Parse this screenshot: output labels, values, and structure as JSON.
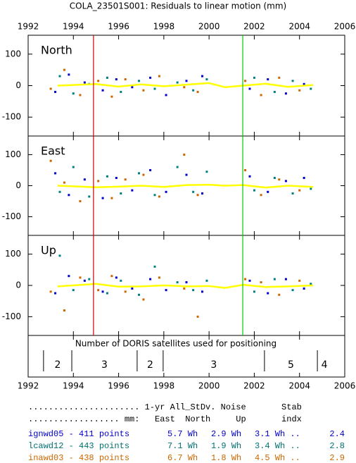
{
  "title": "COLA_23501S001: Residuals to linear motion (mm)",
  "markers": [
    {
      "x": 1994.89,
      "color": "#cc0000"
    },
    {
      "x": 2001.49,
      "color": "#00cc00"
    }
  ],
  "chart_data": [
    {
      "type": "scatter",
      "label": "North",
      "xlim": [
        1992,
        2006
      ],
      "ylim": [
        -160,
        160
      ],
      "xticks": [
        1992,
        1994,
        1996,
        1998,
        2000,
        2002,
        2004,
        2006
      ],
      "yticks": [
        100,
        0,
        -100
      ],
      "series": [
        {
          "name": "ignwd05",
          "color": "#0000cc",
          "x": [
            1993.2,
            1993.8,
            1994.5,
            1995.3,
            1995.9,
            1996.6,
            1997.4,
            1998.1,
            1999.0,
            1999.7,
            2001.8,
            2002.6,
            2003.4,
            2004.2
          ],
          "values": [
            -20,
            35,
            10,
            -15,
            20,
            -5,
            25,
            -30,
            15,
            30,
            -10,
            20,
            -25,
            5
          ]
        },
        {
          "name": "lcawd12",
          "color": "#008080",
          "x": [
            1993.4,
            1994.0,
            1994.7,
            1995.5,
            1996.1,
            1996.9,
            1997.6,
            1998.6,
            1999.3,
            1999.9,
            2002.0,
            2002.9,
            2003.7,
            2004.5
          ],
          "values": [
            30,
            -25,
            5,
            25,
            -20,
            15,
            -10,
            10,
            -15,
            20,
            25,
            -20,
            15,
            -10
          ]
        },
        {
          "name": "inawd03",
          "color": "#cc6600",
          "x": [
            1993.0,
            1993.6,
            1994.3,
            1995.1,
            1995.7,
            1996.3,
            1997.1,
            1997.8,
            1998.9,
            1999.5,
            2001.6,
            2002.3,
            2003.1,
            2004.0
          ],
          "values": [
            -10,
            50,
            -30,
            15,
            -35,
            20,
            -15,
            30,
            -5,
            -20,
            15,
            -30,
            25,
            -15
          ]
        },
        {
          "name": "mean",
          "color": "#ffff00",
          "line": true,
          "x": [
            1993.3,
            1994,
            1995,
            1996,
            1997,
            1998,
            1999,
            2000,
            2000.7,
            2001.5,
            2002.5,
            2003.5,
            2004.6
          ],
          "values": [
            0,
            2,
            5,
            -3,
            4,
            -2,
            3,
            8,
            -5,
            0,
            6,
            -4,
            2
          ]
        }
      ]
    },
    {
      "type": "scatter",
      "label": "East",
      "xlim": [
        1992,
        2006
      ],
      "ylim": [
        -160,
        160
      ],
      "xticks": [
        1992,
        1994,
        1996,
        1998,
        2000,
        2002,
        2004,
        2006
      ],
      "yticks": [
        100,
        0,
        -100
      ],
      "series": [
        {
          "name": "ignwd05",
          "color": "#0000cc",
          "x": [
            1993.2,
            1993.8,
            1994.5,
            1995.3,
            1995.9,
            1996.6,
            1997.4,
            1998.1,
            1999.0,
            1999.7,
            2001.8,
            2002.6,
            2003.4,
            2004.2
          ],
          "values": [
            40,
            -30,
            20,
            -40,
            25,
            -15,
            50,
            -20,
            35,
            -25,
            30,
            -20,
            15,
            25
          ]
        },
        {
          "name": "lcawd12",
          "color": "#008080",
          "x": [
            1993.4,
            1994.0,
            1994.7,
            1995.5,
            1996.1,
            1996.9,
            1997.6,
            1998.6,
            1999.3,
            1999.9,
            2002.0,
            2002.9,
            2003.7,
            2004.5
          ],
          "values": [
            -20,
            60,
            -35,
            30,
            -25,
            40,
            -30,
            60,
            -20,
            45,
            -15,
            25,
            -25,
            -10
          ]
        },
        {
          "name": "inawd03",
          "color": "#cc6600",
          "x": [
            1993.0,
            1993.6,
            1994.3,
            1995.1,
            1995.7,
            1996.3,
            1997.1,
            1997.8,
            1998.9,
            1999.5,
            2001.6,
            2002.3,
            2003.1,
            2004.0
          ],
          "values": [
            80,
            10,
            -50,
            15,
            -40,
            20,
            35,
            -35,
            100,
            -30,
            50,
            -30,
            20,
            -15
          ]
        },
        {
          "name": "mean",
          "color": "#ffff00",
          "line": true,
          "x": [
            1993.3,
            1994,
            1995,
            1996,
            1997,
            1998,
            1999,
            2000,
            2000.7,
            2001.5,
            2002.5,
            2003.5,
            2004.6
          ],
          "values": [
            0,
            -2,
            -5,
            -3,
            0,
            -4,
            2,
            3,
            0,
            2,
            -6,
            0,
            -4
          ]
        }
      ]
    },
    {
      "type": "scatter",
      "label": "Up",
      "xlim": [
        1992,
        2006
      ],
      "ylim": [
        -160,
        160
      ],
      "xticks": [
        1992,
        1994,
        1996,
        1998,
        2000,
        2002,
        2004,
        2006
      ],
      "yticks": [
        100,
        0,
        -100
      ],
      "series": [
        {
          "name": "ignwd05",
          "color": "#0000cc",
          "x": [
            1993.2,
            1993.8,
            1994.5,
            1995.3,
            1995.9,
            1996.6,
            1997.4,
            1998.1,
            1999.0,
            1999.7,
            2001.8,
            2002.6,
            2003.4,
            2004.2
          ],
          "values": [
            -25,
            30,
            15,
            -20,
            25,
            -10,
            20,
            -15,
            10,
            -20,
            15,
            -25,
            20,
            -10
          ]
        },
        {
          "name": "lcawd12",
          "color": "#008080",
          "x": [
            1993.4,
            1994.0,
            1994.7,
            1995.5,
            1996.1,
            1996.9,
            1997.6,
            1998.6,
            1999.3,
            1999.9,
            2002.0,
            2002.9,
            2003.7,
            2004.5
          ],
          "values": [
            95,
            -15,
            20,
            -25,
            15,
            -30,
            60,
            10,
            -15,
            15,
            -20,
            20,
            -15,
            5
          ]
        },
        {
          "name": "inawd03",
          "color": "#cc6600",
          "x": [
            1993.0,
            1993.6,
            1994.3,
            1995.1,
            1995.7,
            1996.3,
            1997.1,
            1997.8,
            1998.9,
            1999.5,
            2001.6,
            2002.3,
            2003.1,
            2004.0
          ],
          "values": [
            -20,
            -80,
            25,
            -15,
            30,
            -20,
            -45,
            25,
            -10,
            -100,
            20,
            10,
            -30,
            15
          ]
        },
        {
          "name": "mean",
          "color": "#ffff00",
          "line": true,
          "x": [
            1993.3,
            1994,
            1995,
            1996,
            1997,
            1998,
            1999,
            2000,
            2000.7,
            2001.5,
            2002.5,
            2003.5,
            2004.6
          ],
          "values": [
            -3,
            0,
            5,
            -4,
            -3,
            0,
            -3,
            -2,
            -8,
            2,
            -5,
            -3,
            0
          ]
        }
      ]
    },
    {
      "type": "timeline",
      "title": "Number of DORIS satellites used for positioning",
      "xlim": [
        1992,
        2006
      ],
      "xticks": [
        1992,
        1994,
        1996,
        1998,
        2000,
        2002,
        2004,
        2006
      ],
      "breaks": [
        1992.68,
        1993.93,
        1996.82,
        1997.97,
        2002.45,
        2004.79
      ],
      "counts": [
        2,
        3,
        2,
        3,
        5,
        4
      ]
    }
  ],
  "table": {
    "header": [
      "...................... 1-yr All_StDv. Noise       Stab",
      ".................. mm:   East  North     Up       indx"
    ],
    "rows": [
      {
        "color": "#0000cc",
        "cells": [
          "ignwd05 - 411 points",
          "5.7 Wh",
          "2.9 Wh",
          "3.1 Wh ..",
          "2.4"
        ]
      },
      {
        "color": "#007070",
        "cells": [
          "lcawd12 - 443 points",
          "7.1 Wh",
          "1.9 Wh",
          "3.4 Wh ..",
          "2.8"
        ]
      },
      {
        "color": "#cc6600",
        "cells": [
          "inawd03 - 438 points",
          "6.7 Wh",
          "1.8 Wh",
          "4.5 Wh ..",
          "2.9"
        ]
      }
    ]
  }
}
